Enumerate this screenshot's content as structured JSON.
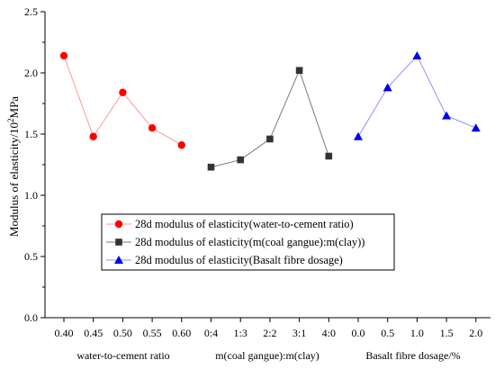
{
  "chart_data": {
    "type": "line",
    "title": "",
    "ylabel": "Modulus of elasticity/10",
    "ylabel_superscript": "2",
    "ylabel_unit": "MPa",
    "ylim": [
      0,
      2.5
    ],
    "yticks": [
      "0.0",
      "0.5",
      "1.0",
      "1.5",
      "2.0",
      "2.5"
    ],
    "grid": false,
    "legend_position": "lower-center",
    "groups": [
      {
        "xlabel": "water-to-cement ratio",
        "categories": [
          "0.40",
          "0.45",
          "0.50",
          "0.55",
          "0.60"
        ],
        "series": {
          "name": "28d modulus of elasticity(water-to-cement ratio)",
          "values": [
            2.14,
            1.48,
            1.84,
            1.55,
            1.41
          ],
          "color": "#ff0000",
          "line_color": "#ff9a9a",
          "marker": "circle"
        }
      },
      {
        "xlabel": "m(coal gangue):m(clay)",
        "categories": [
          "0:4",
          "1:3",
          "2:2",
          "3:1",
          "4:0"
        ],
        "series": {
          "name": "28d modulus of elasticity(m(coal gangue):m(clay))",
          "values": [
            1.23,
            1.29,
            1.46,
            2.02,
            1.32
          ],
          "color": "#333333",
          "line_color": "#7a7a7a",
          "marker": "square"
        }
      },
      {
        "xlabel": "Basalt fibre dosage/%",
        "categories": [
          "0.0",
          "0.5",
          "1.0",
          "1.5",
          "2.0"
        ],
        "series": {
          "name": "28d modulus of elasticity(Basalt fibre dosage)",
          "values": [
            1.48,
            1.88,
            2.14,
            1.65,
            1.55
          ],
          "color": "#0000ee",
          "line_color": "#8f8fff",
          "marker": "triangle"
        }
      }
    ]
  }
}
